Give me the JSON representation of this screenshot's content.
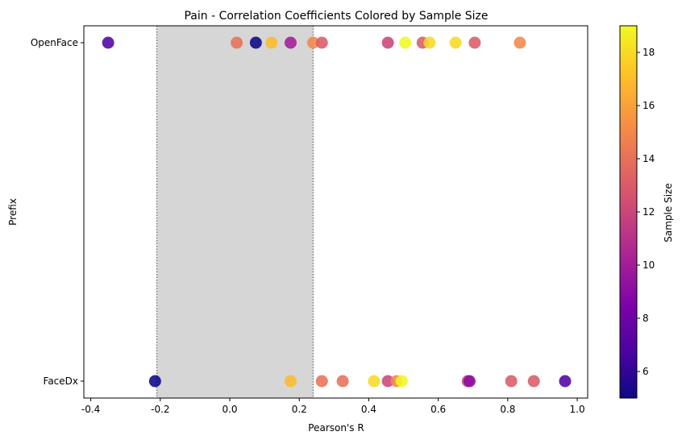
{
  "chart_data": {
    "type": "scatter",
    "title": "Pain - Correlation Coefficients Colored by Sample Size",
    "xlabel": "Pearson's R",
    "ylabel": "Prefix",
    "xlim": [
      -0.42,
      1.03
    ],
    "x_ticks": [
      "-0.4",
      "-0.2",
      "0.0",
      "0.2",
      "0.4",
      "0.6",
      "0.8",
      "1.0"
    ],
    "x_tick_values": [
      -0.4,
      -0.2,
      0.0,
      0.2,
      0.4,
      0.6,
      0.8,
      1.0
    ],
    "categories": [
      "OpenFace",
      "FaceDx"
    ],
    "shaded_region": {
      "x_range": [
        -0.21,
        0.24
      ],
      "color": "#d6d6d6",
      "boundary_style": "dotted"
    },
    "colorbar": {
      "label": "Sample Size",
      "range": [
        5,
        19
      ],
      "ticks": [
        "6",
        "8",
        "10",
        "12",
        "14",
        "16",
        "18"
      ],
      "tick_values": [
        6,
        8,
        10,
        12,
        14,
        16,
        18
      ],
      "colormap": "plasma"
    },
    "grid": false,
    "series": [
      {
        "category": "OpenFace",
        "points": [
          {
            "x": -0.35,
            "n": 7
          },
          {
            "x": 0.02,
            "n": 14
          },
          {
            "x": 0.075,
            "n": 5
          },
          {
            "x": 0.12,
            "n": 17
          },
          {
            "x": 0.175,
            "n": 10
          },
          {
            "x": 0.24,
            "n": 15
          },
          {
            "x": 0.265,
            "n": 13
          },
          {
            "x": 0.455,
            "n": 12
          },
          {
            "x": 0.505,
            "n": 19
          },
          {
            "x": 0.555,
            "n": 13
          },
          {
            "x": 0.575,
            "n": 18
          },
          {
            "x": 0.65,
            "n": 18
          },
          {
            "x": 0.705,
            "n": 13
          },
          {
            "x": 0.835,
            "n": 15
          }
        ]
      },
      {
        "category": "FaceDx",
        "points": [
          {
            "x": -0.215,
            "n": 5
          },
          {
            "x": 0.175,
            "n": 17
          },
          {
            "x": 0.265,
            "n": 14
          },
          {
            "x": 0.325,
            "n": 14
          },
          {
            "x": 0.415,
            "n": 18
          },
          {
            "x": 0.455,
            "n": 12
          },
          {
            "x": 0.48,
            "n": 15
          },
          {
            "x": 0.495,
            "n": 19
          },
          {
            "x": 0.685,
            "n": 12
          },
          {
            "x": 0.69,
            "n": 9
          },
          {
            "x": 0.81,
            "n": 13
          },
          {
            "x": 0.875,
            "n": 13
          },
          {
            "x": 0.965,
            "n": 7
          }
        ]
      }
    ]
  }
}
